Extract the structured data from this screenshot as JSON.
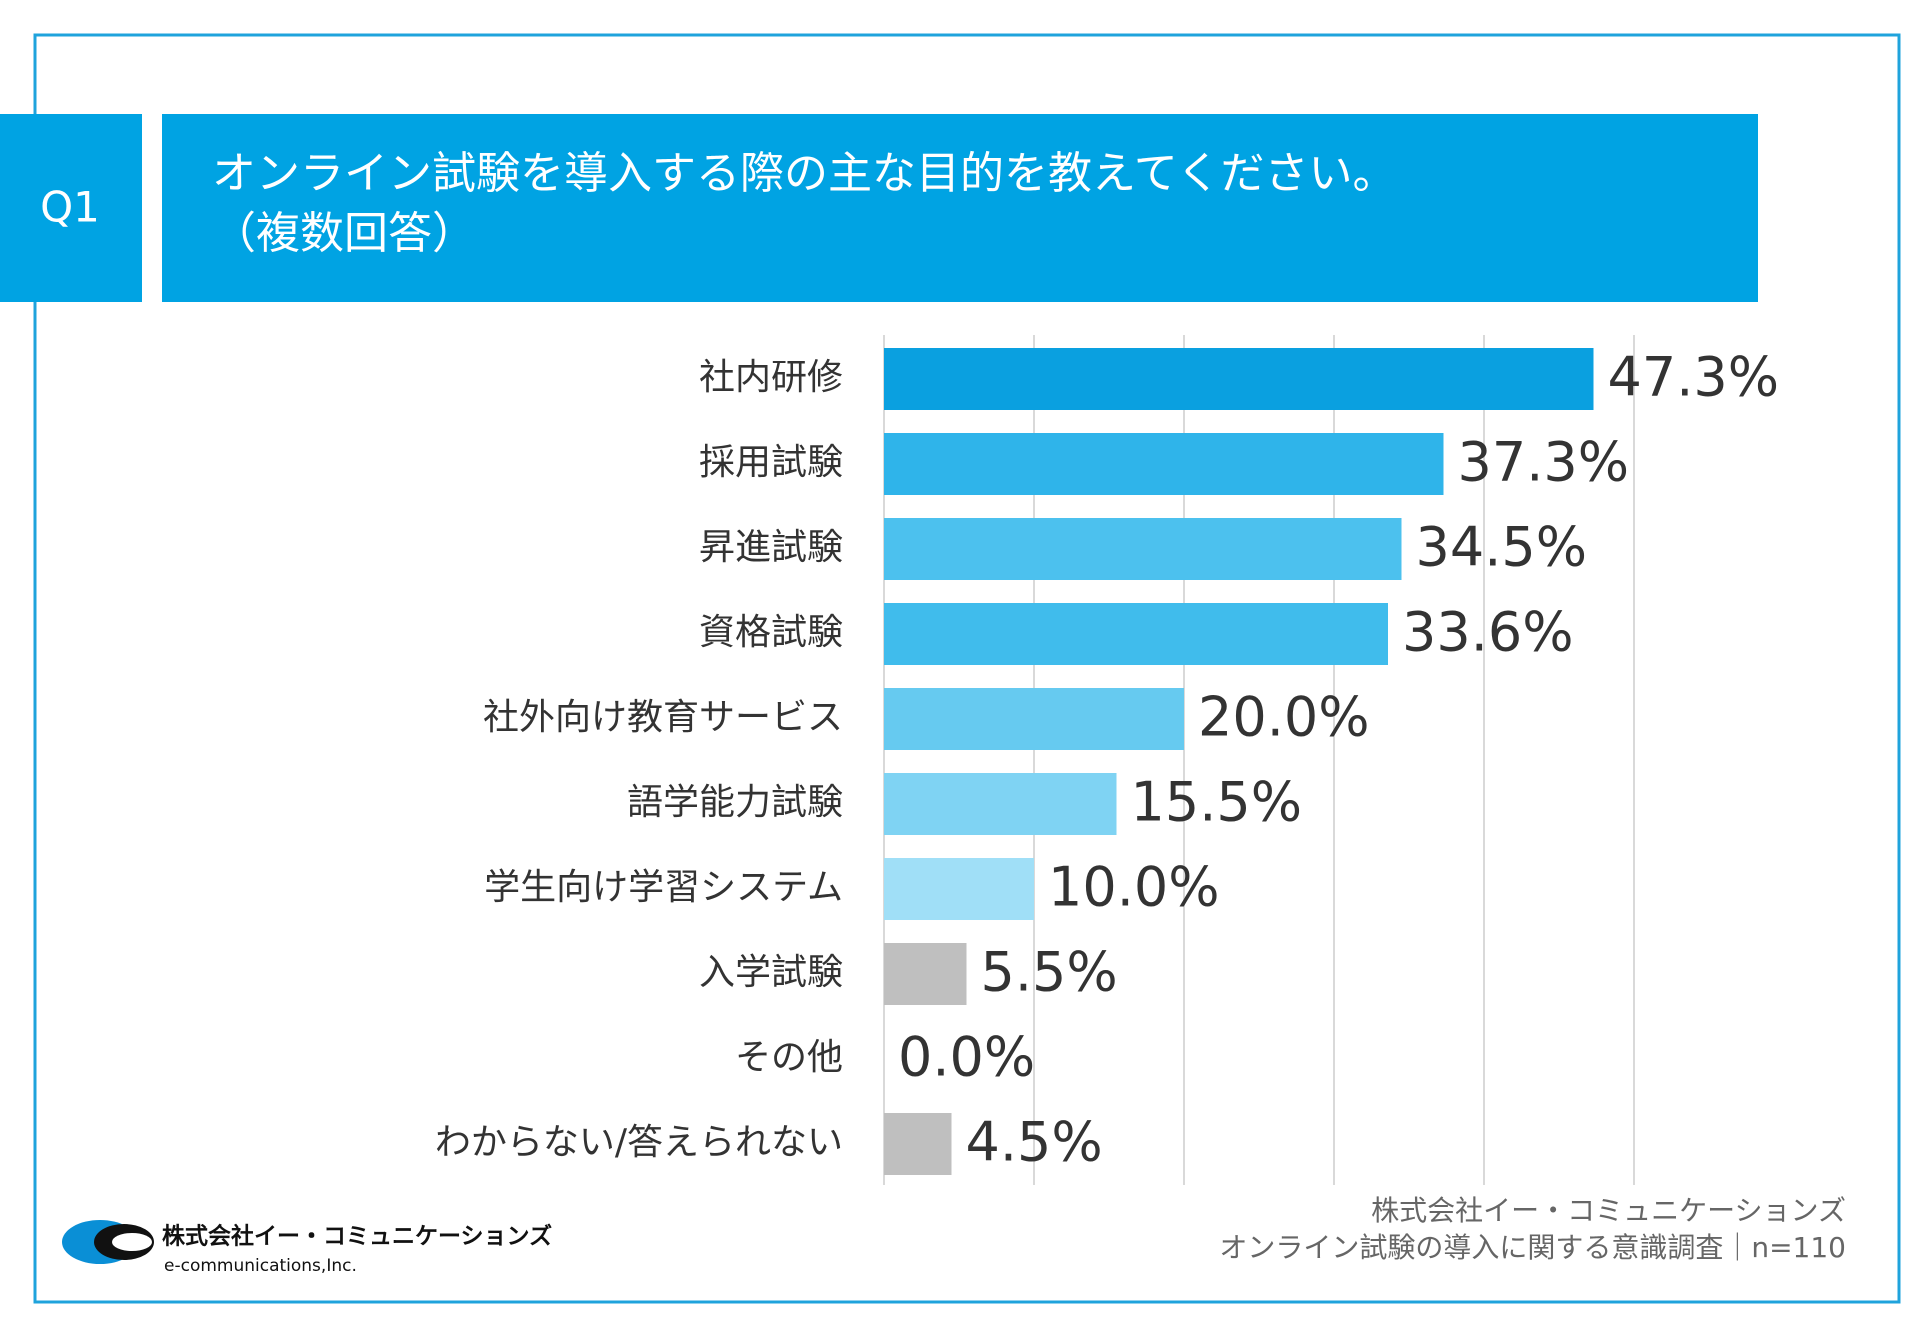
{
  "header": {
    "badge": "Q1",
    "title": "オンライン試験を導入する際の主な目的を教えてください。",
    "subtitle": "（複数回答）"
  },
  "chart_data": {
    "type": "bar",
    "orientation": "horizontal",
    "categories": [
      "社内研修",
      "採用試験",
      "昇進試験",
      "資格試験",
      "社外向け教育サービス",
      "語学能力試験",
      "学生向け学習システム",
      "入学試験",
      "その他",
      "わからない/答えられない"
    ],
    "values": [
      47.3,
      37.3,
      34.5,
      33.6,
      20.0,
      15.5,
      10.0,
      5.5,
      0.0,
      4.5
    ],
    "value_labels": [
      "47.3%",
      "37.3%",
      "34.5%",
      "33.6%",
      "20.0%",
      "15.5%",
      "10.0%",
      "5.5%",
      "0.0%",
      "4.5%"
    ],
    "colors": [
      "#0aa0e0",
      "#2fb4ea",
      "#4cc1ee",
      "#40bcec",
      "#66caf0",
      "#7fd3f3",
      "#a0dff7",
      "#bfbfbf",
      "#bfbfbf",
      "#bfbfbf"
    ],
    "xlim": [
      0,
      50
    ],
    "xticks": [
      0,
      10,
      20,
      30,
      40,
      50
    ],
    "grid": true
  },
  "source": {
    "line1": "株式会社イー・コミュニケーションズ",
    "line2": "オンライン試験の導入に関する意識調査｜n=110"
  },
  "logo": {
    "name": "株式会社イー・コミュニケーションズ",
    "name_en": "e-communications,Inc."
  }
}
